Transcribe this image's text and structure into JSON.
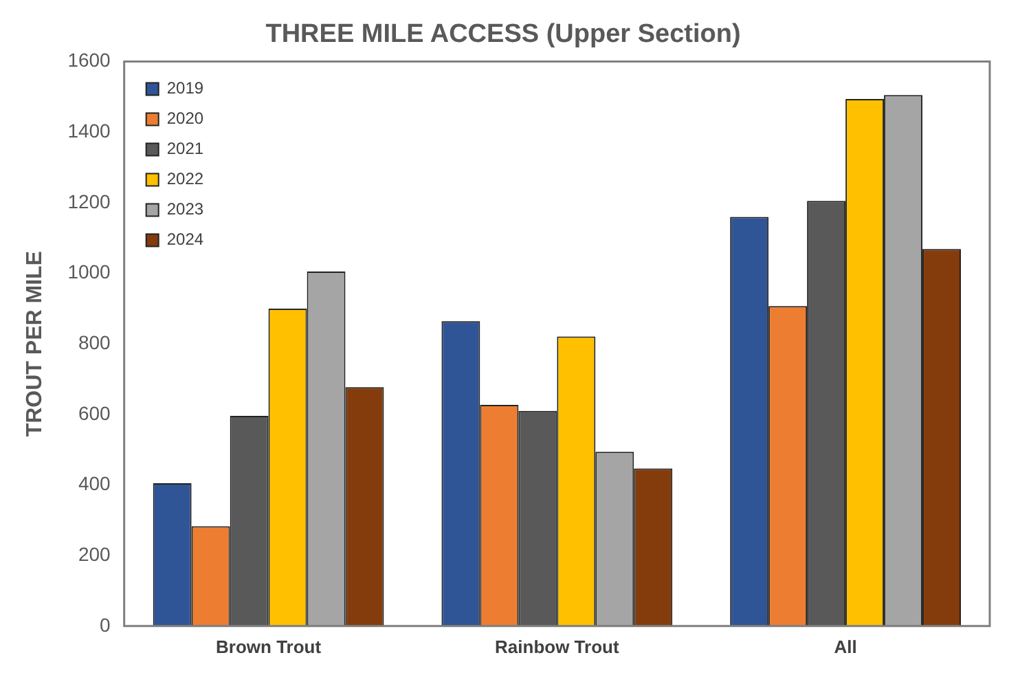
{
  "chart_data": {
    "type": "bar",
    "title": "THREE MILE ACCESS (Upper Section)",
    "ylabel": "TROUT PER MILE",
    "categories": [
      "Brown Trout",
      "Rainbow Trout",
      "All"
    ],
    "series": [
      {
        "name": "2019",
        "color": "#2f5597",
        "values": [
          405,
          864,
          1160
        ]
      },
      {
        "name": "2020",
        "color": "#ed7d31",
        "values": [
          283,
          627,
          907
        ]
      },
      {
        "name": "2021",
        "color": "#595959",
        "values": [
          596,
          610,
          1205
        ]
      },
      {
        "name": "2022",
        "color": "#ffc000",
        "values": [
          900,
          821,
          1494
        ]
      },
      {
        "name": "2023",
        "color": "#a5a5a5",
        "values": [
          1005,
          494,
          1505
        ]
      },
      {
        "name": "2024",
        "color": "#843c0c",
        "values": [
          677,
          447,
          1069
        ]
      }
    ],
    "ylim": [
      0,
      1600
    ],
    "yticks": [
      0,
      200,
      400,
      600,
      800,
      1000,
      1200,
      1400,
      1600
    ],
    "grid": false,
    "legend": "top left"
  }
}
